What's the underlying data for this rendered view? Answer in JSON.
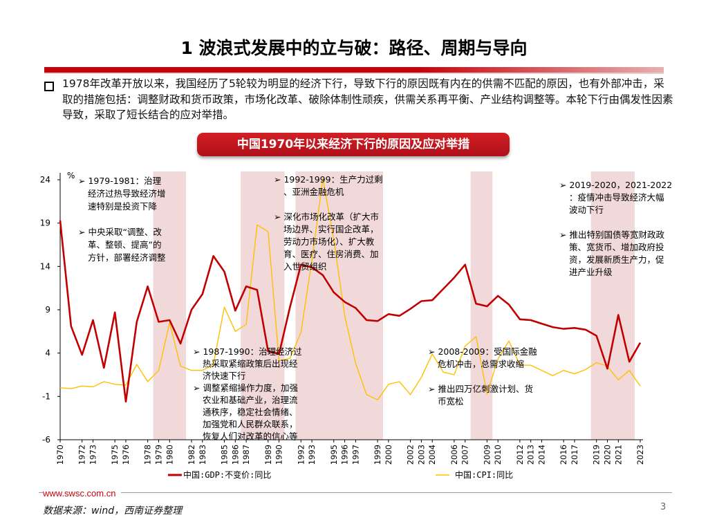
{
  "page": {
    "title": "1 波浪式发展中的立与破：路径、周期与导向",
    "paragraph": "1978年改革开放以来，我国经历了5轮较为明显的经济下行，导致下行的原因既有内在的供需不匹配的原因，也有外部冲击，采取的措施包括：调整财政和货币政策，市场化改革、破除体制性顽疾，供需关系再平衡、产业结构调整等。本轮下行由偶发性因素导致，采取了短长结合的应对举措。",
    "banner": "中国1970年以来经济下行的原因及应对举措",
    "url": "www.swsc.com.cn",
    "source": "数据来源：wind，西南证券整理",
    "page_number": "3"
  },
  "chart_data": {
    "type": "line",
    "unit_label": "%",
    "ylim": [
      -6,
      24
    ],
    "yticks": [
      "24",
      "19",
      "14",
      "9",
      "4",
      "-1",
      "-6"
    ],
    "x": [
      1970,
      1971,
      1972,
      1973,
      1974,
      1975,
      1976,
      1977,
      1978,
      1979,
      1980,
      1981,
      1982,
      1983,
      1984,
      1985,
      1986,
      1987,
      1988,
      1989,
      1990,
      1991,
      1992,
      1993,
      1994,
      1995,
      1996,
      1997,
      1998,
      1999,
      2000,
      2001,
      2002,
      2003,
      2004,
      2005,
      2006,
      2007,
      2008,
      2009,
      2010,
      2011,
      2012,
      2013,
      2014,
      2015,
      2016,
      2017,
      2018,
      2019,
      2020,
      2021,
      2022,
      2023
    ],
    "xtick_labels": [
      "1970",
      "1972",
      "1973",
      "1975",
      "1976",
      "1978",
      "1979",
      "1980",
      "1982",
      "1983",
      "1985",
      "1986",
      "1987",
      "1989",
      "1990",
      "1992",
      "1993",
      "1995",
      "1996",
      "1997",
      "1999",
      "2000",
      "2002",
      "2003",
      "2004",
      "2006",
      "2007",
      "2009",
      "2010",
      "2012",
      "2013",
      "2014",
      "2016",
      "2017",
      "2019",
      "2020",
      "2021",
      "2023"
    ],
    "series": [
      {
        "name": "中国:GDP:不变价:同比",
        "color": "#c00000",
        "values": [
          19.3,
          7.1,
          3.8,
          7.8,
          2.3,
          8.7,
          -1.6,
          7.6,
          11.7,
          7.6,
          7.8,
          5.1,
          9.0,
          10.8,
          15.2,
          13.4,
          8.9,
          11.7,
          11.3,
          4.2,
          3.9,
          9.3,
          14.2,
          13.9,
          13.0,
          11.0,
          9.9,
          9.2,
          7.8,
          7.7,
          8.5,
          8.3,
          9.1,
          10.0,
          10.1,
          11.4,
          12.7,
          14.2,
          9.7,
          9.4,
          10.6,
          9.6,
          7.9,
          7.8,
          7.4,
          7.0,
          6.8,
          6.9,
          6.7,
          6.0,
          2.2,
          8.4,
          3.0,
          5.2
        ]
      },
      {
        "name": "中国:CPI:同比",
        "color": "#ffc000",
        "values": [
          0.0,
          -0.1,
          0.2,
          0.1,
          0.7,
          0.4,
          0.3,
          2.7,
          0.7,
          2.0,
          7.5,
          2.5,
          2.0,
          2.0,
          2.7,
          9.3,
          6.5,
          7.3,
          18.8,
          18.0,
          3.1,
          3.4,
          6.4,
          14.7,
          24.1,
          17.1,
          8.3,
          2.8,
          -0.8,
          -1.4,
          0.4,
          0.7,
          -0.8,
          1.2,
          3.9,
          1.8,
          1.5,
          4.8,
          5.9,
          -0.7,
          3.3,
          5.4,
          2.6,
          2.6,
          2.0,
          1.4,
          2.0,
          1.6,
          2.1,
          2.9,
          2.5,
          0.9,
          2.0,
          0.2
        ]
      }
    ],
    "shaded_periods": [
      [
        1979,
        1981
      ],
      [
        1987,
        1990
      ],
      [
        1992,
        1999
      ],
      [
        2008,
        2009
      ],
      [
        2019,
        2020
      ],
      [
        2021,
        2022
      ]
    ],
    "annotations": [
      {
        "id": "a1979",
        "lines": [
          "➢ 1979-1981：治理",
          "经济过热导致经济增",
          "速特别是投资下降",
          "",
          "➢ 中央采取“调整、改",
          "革、整顿、提高”的",
          "方针，部署经济调整"
        ]
      },
      {
        "id": "a1992",
        "lines": [
          "➢ 1992-1999：生产力过剩",
          "、亚洲金融危机",
          "",
          "➢ 深化市场化改革（扩大市",
          "场边界、实行国企改革，",
          "劳动力市场化）、扩大教",
          "育、医疗、住房消费、加",
          "入世贸组织"
        ]
      },
      {
        "id": "a2019",
        "lines": [
          "➢ 2019-2020，2021-2022",
          "：疫情冲击导致经济大幅",
          "波动下行",
          "",
          "➢ 推出特别国债等宽财政政",
          "策、宽货币、增加政府投",
          "资，发展新质生产力，促",
          "进产业升级"
        ]
      },
      {
        "id": "a1987",
        "lines": [
          "➢ 1987-1990：治理经济过",
          "热采取紧缩政策后出现经",
          "济快速下行",
          "➢ 调整紧缩操作力度，加强",
          "农业和基础产业，治理流",
          "通秩序，稳定社会情绪、",
          "加强党和人民群众联系，",
          "恢复人们对改革的信心等"
        ]
      },
      {
        "id": "a2008",
        "lines": [
          "➢ 2008-2009：受国际金融",
          "危机冲击，总需求收缩",
          "",
          "➢ 推出四万亿刺激计划、货",
          "币宽松"
        ]
      }
    ]
  }
}
